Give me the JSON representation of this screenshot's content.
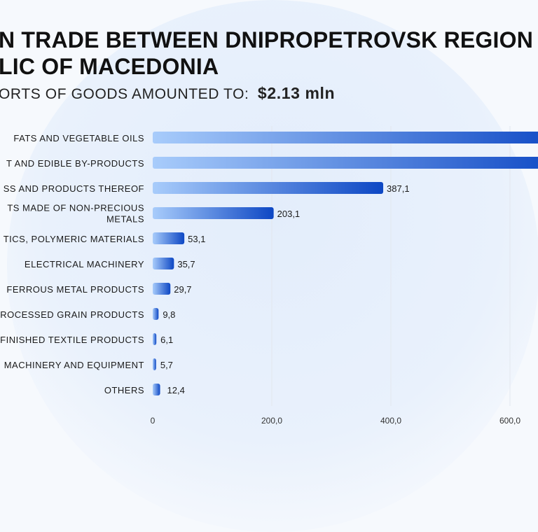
{
  "title_line1": "N TRADE BETWEEN DNIPROPETROVSK REGION",
  "title_line2": "LIC OF MACEDONIA",
  "subtitle_label": "ORTS OF GOODS AMOUNTED TO:",
  "subtitle_amount": "$2.13  mln",
  "colors": {
    "bar_start": "#a8ccfb",
    "bar_end": "#0d47c4",
    "grid": "#e3e7ee",
    "axis_text": "#333"
  },
  "chart_data": {
    "type": "bar",
    "orientation": "horizontal",
    "categories": [
      "FATS AND VEGETABLE OILS",
      "T AND EDIBLE BY-PRODUCTS",
      "SS AND PRODUCTS THEREOF",
      "TS MADE OF NON-PRECIOUS METALS",
      "TICS, POLYMERIC MATERIALS",
      "ELECTRICAL MACHINERY",
      "FERROUS METAL PRODUCTS",
      "ROCESSED GRAIN PRODUCTS",
      "FINISHED TEXTILE PRODUCTS",
      "MACHINERY AND EQUIPMENT",
      "OTHERS"
    ],
    "values": [
      700,
      700,
      387.1,
      203.1,
      53.1,
      35.7,
      29.7,
      9.8,
      6.1,
      5.7,
      12.4
    ],
    "data_labels": [
      "",
      "",
      "387,1",
      "203,1",
      "53,1",
      "35,7",
      "29,7",
      "9,8",
      "6,1",
      "5,7",
      "12,4"
    ],
    "x_ticks": [
      0,
      200,
      400,
      600
    ],
    "x_tick_labels": [
      "0",
      "200,0",
      "400,0",
      "600,0"
    ],
    "xlim": [
      0,
      645
    ],
    "grid": true
  }
}
